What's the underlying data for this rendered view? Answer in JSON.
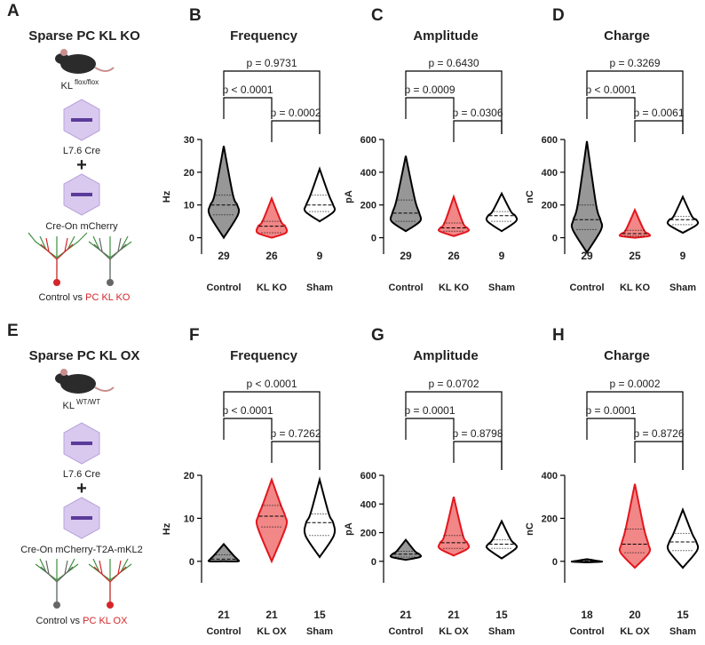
{
  "schematics": [
    {
      "panel": "A",
      "title": "Sparse PC KL KO",
      "allele": "KL",
      "allele_sup": "flox/flox",
      "vector1": "L7.6 Cre",
      "plus": "+",
      "vector2": "Cre-On mCherry",
      "caption": "Control vs ",
      "caption_highlight": "PC KL KO"
    },
    {
      "panel": "E",
      "title": "Sparse PC KL OX",
      "allele": "KL",
      "allele_sup": "WT/WT",
      "vector1": "L7.6 Cre",
      "plus": "+",
      "vector2": "Cre-On mCherry-T2A-mKL2",
      "caption": "Control vs ",
      "caption_highlight": "PC KL OX"
    }
  ],
  "chart_data": [
    {
      "panel": "B",
      "type": "violin",
      "title": "Frequency",
      "ylabel": "Hz",
      "categories": [
        "Control",
        "KL KO",
        "Sham"
      ],
      "n": [
        29,
        26,
        9
      ],
      "colors": [
        "#000000",
        "#e3161d",
        "#000000"
      ],
      "fills": [
        "#8c8c8c",
        "#f07a7a",
        "#ffffff"
      ],
      "min": [
        0,
        0,
        5
      ],
      "q1": [
        7,
        1.5,
        8
      ],
      "median": [
        10,
        3.5,
        10
      ],
      "q3": [
        13,
        5,
        13
      ],
      "max": [
        28,
        12,
        21
      ],
      "ylim": [
        -5,
        30
      ],
      "yticks": [
        0,
        10,
        20,
        30
      ],
      "comparisons": [
        {
          "a": 0,
          "b": 2,
          "label": "p = 0.9731"
        },
        {
          "a": 0,
          "b": 1,
          "label": "p < 0.0001"
        },
        {
          "a": 1,
          "b": 2,
          "label": "p = 0.0002"
        }
      ]
    },
    {
      "panel": "C",
      "type": "violin",
      "title": "Amplitude",
      "ylabel": "pA",
      "categories": [
        "Control",
        "KL KO",
        "Sham"
      ],
      "n": [
        29,
        26,
        9
      ],
      "colors": [
        "#000000",
        "#e3161d",
        "#000000"
      ],
      "fills": [
        "#8c8c8c",
        "#f07a7a",
        "#ffffff"
      ],
      "min": [
        40,
        10,
        40
      ],
      "q1": [
        100,
        40,
        100
      ],
      "median": [
        150,
        60,
        135
      ],
      "q3": [
        230,
        90,
        160
      ],
      "max": [
        500,
        250,
        270
      ],
      "ylim": [
        -100,
        600
      ],
      "yticks": [
        0,
        200,
        400,
        600
      ],
      "comparisons": [
        {
          "a": 0,
          "b": 2,
          "label": "p = 0.6430"
        },
        {
          "a": 0,
          "b": 1,
          "label": "p = 0.0009"
        },
        {
          "a": 1,
          "b": 2,
          "label": "p = 0.0306"
        }
      ]
    },
    {
      "panel": "D",
      "type": "violin",
      "title": "Charge",
      "ylabel": "nC",
      "categories": [
        "Control",
        "KL KO",
        "Sham"
      ],
      "n": [
        29,
        25,
        9
      ],
      "colors": [
        "#000000",
        "#e3161d",
        "#000000"
      ],
      "fills": [
        "#8c8c8c",
        "#f07a7a",
        "#ffffff"
      ],
      "min": [
        -90,
        0,
        30
      ],
      "q1": [
        50,
        10,
        80
      ],
      "median": [
        110,
        25,
        110
      ],
      "q3": [
        200,
        45,
        130
      ],
      "max": [
        590,
        170,
        250
      ],
      "ylim": [
        -100,
        600
      ],
      "yticks": [
        0,
        200,
        400,
        600
      ],
      "comparisons": [
        {
          "a": 0,
          "b": 2,
          "label": "p = 0.3269"
        },
        {
          "a": 0,
          "b": 1,
          "label": "p < 0.0001"
        },
        {
          "a": 1,
          "b": 2,
          "label": "p = 0.0061"
        }
      ]
    },
    {
      "panel": "F",
      "type": "violin",
      "title": "Frequency",
      "ylabel": "Hz",
      "categories": [
        "Control",
        "KL OX",
        "Sham"
      ],
      "n": [
        21,
        21,
        15
      ],
      "colors": [
        "#000000",
        "#e3161d",
        "#000000"
      ],
      "fills": [
        "#8c8c8c",
        "#f07a7a",
        "#ffffff"
      ],
      "min": [
        0,
        0,
        1
      ],
      "q1": [
        0,
        8,
        6
      ],
      "median": [
        0.5,
        10.5,
        9
      ],
      "q3": [
        1.5,
        13,
        11
      ],
      "max": [
        4,
        19,
        19
      ],
      "ylim": [
        -5,
        20
      ],
      "yticks": [
        0,
        10,
        20
      ],
      "comparisons": [
        {
          "a": 0,
          "b": 2,
          "label": "p < 0.0001"
        },
        {
          "a": 0,
          "b": 1,
          "label": "p < 0.0001"
        },
        {
          "a": 1,
          "b": 2,
          "label": "p = 0.7262"
        }
      ]
    },
    {
      "panel": "G",
      "type": "violin",
      "title": "Amplitude",
      "ylabel": "pA",
      "categories": [
        "Control",
        "KL OX",
        "Sham"
      ],
      "n": [
        21,
        21,
        15
      ],
      "colors": [
        "#000000",
        "#e3161d",
        "#000000"
      ],
      "fills": [
        "#8c8c8c",
        "#f07a7a",
        "#ffffff"
      ],
      "min": [
        10,
        40,
        20
      ],
      "q1": [
        30,
        90,
        90
      ],
      "median": [
        50,
        130,
        120
      ],
      "q3": [
        70,
        180,
        150
      ],
      "max": [
        150,
        450,
        280
      ],
      "ylim": [
        -150,
        600
      ],
      "yticks": [
        0,
        200,
        400,
        600
      ],
      "comparisons": [
        {
          "a": 0,
          "b": 2,
          "label": "p = 0.0702"
        },
        {
          "a": 0,
          "b": 1,
          "label": "p = 0.0001"
        },
        {
          "a": 1,
          "b": 2,
          "label": "p = 0.8798"
        }
      ]
    },
    {
      "panel": "H",
      "type": "violin",
      "title": "Charge",
      "ylabel": "nC",
      "categories": [
        "Control",
        "KL OX",
        "Sham"
      ],
      "n": [
        18,
        20,
        15
      ],
      "colors": [
        "#000000",
        "#e3161d",
        "#000000"
      ],
      "fills": [
        "#8c8c8c",
        "#f07a7a",
        "#ffffff"
      ],
      "min": [
        -5,
        -30,
        -30
      ],
      "q1": [
        -2,
        40,
        50
      ],
      "median": [
        0,
        80,
        90
      ],
      "q3": [
        3,
        150,
        130
      ],
      "max": [
        10,
        360,
        240
      ],
      "ylim": [
        -100,
        400
      ],
      "yticks": [
        0,
        200,
        400
      ],
      "comparisons": [
        {
          "a": 0,
          "b": 2,
          "label": "p = 0.0002"
        },
        {
          "a": 0,
          "b": 1,
          "label": "p = 0.0001"
        },
        {
          "a": 1,
          "b": 2,
          "label": "p = 0.8726"
        }
      ]
    }
  ]
}
